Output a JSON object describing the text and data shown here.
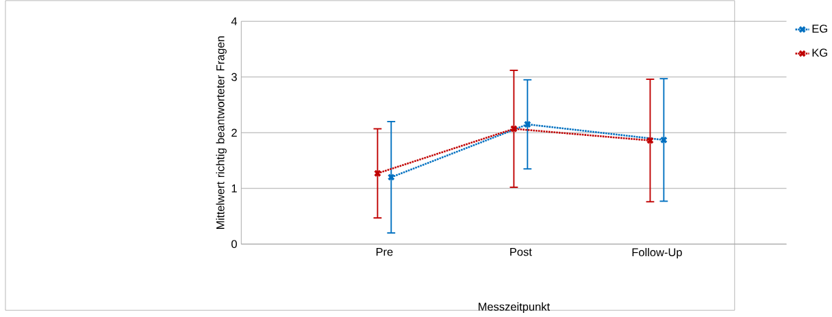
{
  "chart_data": {
    "type": "line",
    "xlabel": "Messzeitpunkt",
    "ylabel": "Mittelwert richtig beantworteter Fragen",
    "categories": [
      "Pre",
      "Post",
      "Follow-Up"
    ],
    "series": [
      {
        "name": "EG",
        "color": "#0070c0",
        "values": [
          1.2,
          2.15,
          1.87
        ],
        "errors": [
          1.0,
          0.8,
          1.1
        ]
      },
      {
        "name": "KG",
        "color": "#c00000",
        "values": [
          1.27,
          2.07,
          1.86
        ],
        "errors": [
          0.8,
          1.05,
          1.1
        ]
      }
    ],
    "ylim": [
      0,
      4
    ],
    "yticks": [
      0,
      1,
      2,
      3,
      4
    ],
    "grid": "y",
    "legend": "top right",
    "marker": "cross",
    "line_style": "dotted"
  }
}
